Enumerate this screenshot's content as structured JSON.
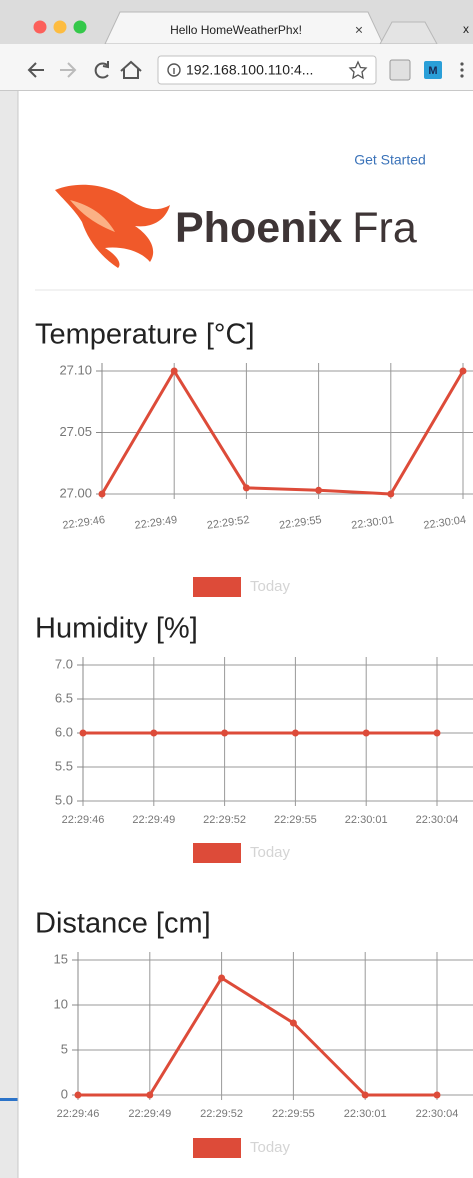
{
  "browser": {
    "tab_title": "Hello HomeWeatherPhx!",
    "tab_close": "×",
    "other_tab_close": "x",
    "url": "192.168.100.110:4...",
    "extension_label": "M"
  },
  "page": {
    "nav_link": "Get Started",
    "logo_bold": "Phoenix",
    "logo_light": "Fra"
  },
  "chart_data": [
    {
      "type": "line",
      "title": "Temperature [°C]",
      "categories": [
        "22:29:46",
        "22:29:49",
        "22:29:52",
        "22:29:55",
        "22:30:01",
        "22:30:04"
      ],
      "series": [
        {
          "name": "Today",
          "color": "#dd4b39",
          "values": [
            27.0,
            27.1,
            27.005,
            27.003,
            27.0,
            27.1
          ]
        }
      ],
      "ylim": [
        27.0,
        27.1
      ],
      "yticks": [
        {
          "value": 27.0,
          "label": "27.00"
        },
        {
          "value": 27.05,
          "label": "27.05"
        },
        {
          "value": 27.1,
          "label": "27.10"
        }
      ],
      "grid": true
    },
    {
      "type": "line",
      "title": "Humidity [%]",
      "categories": [
        "22:29:46",
        "22:29:49",
        "22:29:52",
        "22:29:55",
        "22:30:01",
        "22:30:04"
      ],
      "series": [
        {
          "name": "Today",
          "color": "#dd4b39",
          "values": [
            6,
            6,
            6,
            6,
            6,
            6
          ]
        }
      ],
      "ylim": [
        5,
        7
      ],
      "yticks": [
        {
          "value": 5,
          "label": "5.0"
        },
        {
          "value": 5.5,
          "label": "5.5"
        },
        {
          "value": 6,
          "label": "6.0"
        },
        {
          "value": 6.5,
          "label": "6.5"
        },
        {
          "value": 7,
          "label": "7.0"
        }
      ],
      "grid": true
    },
    {
      "type": "line",
      "title": "Distance [cm]",
      "categories": [
        "22:29:46",
        "22:29:49",
        "22:29:52",
        "22:29:55",
        "22:30:01",
        "22:30:04"
      ],
      "series": [
        {
          "name": "Today",
          "color": "#dd4b39",
          "values": [
            0,
            0,
            13,
            8,
            0,
            0
          ]
        }
      ],
      "ylim": [
        0,
        15
      ],
      "yticks": [
        0,
        5,
        10,
        15
      ],
      "grid": true
    }
  ]
}
